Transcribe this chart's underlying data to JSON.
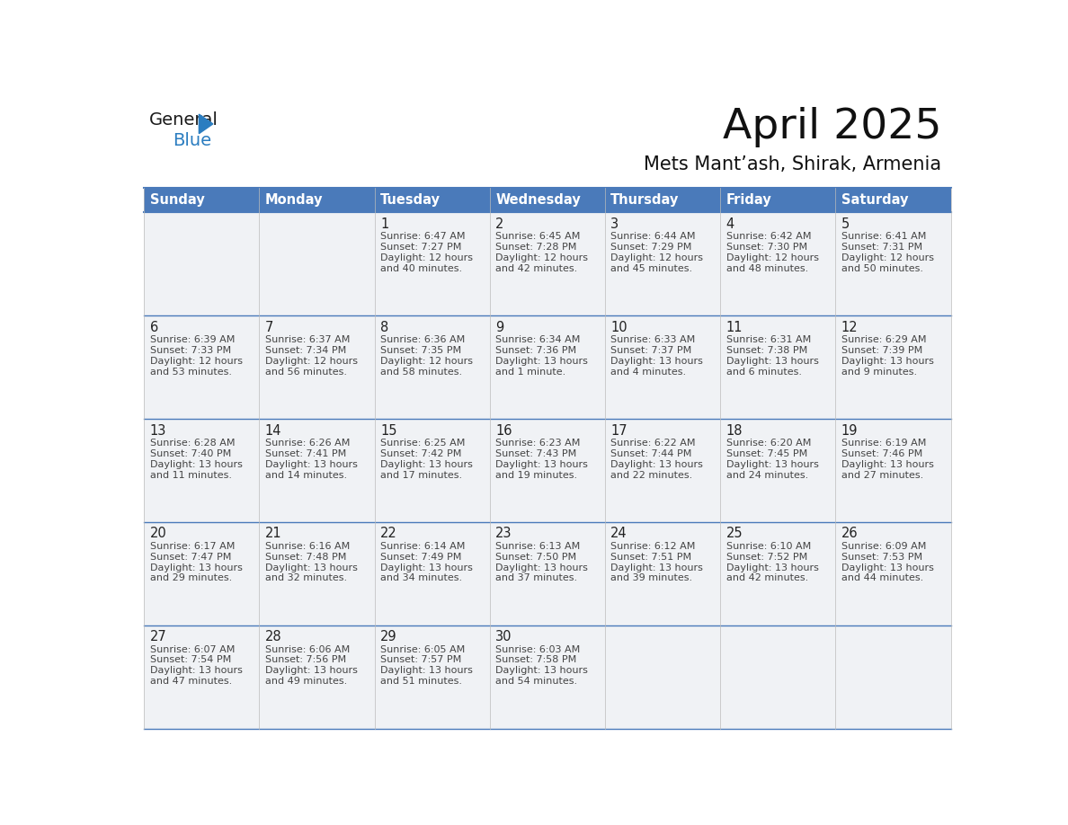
{
  "title": "April 2025",
  "subtitle": "Mets Mant’ash, Shirak, Armenia",
  "header_bg": "#4a7aba",
  "header_text": "#ffffff",
  "header_days": [
    "Sunday",
    "Monday",
    "Tuesday",
    "Wednesday",
    "Thursday",
    "Friday",
    "Saturday"
  ],
  "cell_bg": "#f0f2f5",
  "cell_border_color": "#4a7aba",
  "cell_border_thin": "#cccccc",
  "day_number_color": "#222222",
  "info_color": "#444444",
  "logo_text_color": "#1a1a1a",
  "logo_blue_color": "#2b7dc0",
  "weeks": [
    {
      "days": [
        {
          "date": "",
          "sunrise": "",
          "sunset": "",
          "daylight": ""
        },
        {
          "date": "",
          "sunrise": "",
          "sunset": "",
          "daylight": ""
        },
        {
          "date": "1",
          "sunrise": "6:47 AM",
          "sunset": "7:27 PM",
          "daylight": "12 hours and 40 minutes."
        },
        {
          "date": "2",
          "sunrise": "6:45 AM",
          "sunset": "7:28 PM",
          "daylight": "12 hours and 42 minutes."
        },
        {
          "date": "3",
          "sunrise": "6:44 AM",
          "sunset": "7:29 PM",
          "daylight": "12 hours and 45 minutes."
        },
        {
          "date": "4",
          "sunrise": "6:42 AM",
          "sunset": "7:30 PM",
          "daylight": "12 hours and 48 minutes."
        },
        {
          "date": "5",
          "sunrise": "6:41 AM",
          "sunset": "7:31 PM",
          "daylight": "12 hours and 50 minutes."
        }
      ]
    },
    {
      "days": [
        {
          "date": "6",
          "sunrise": "6:39 AM",
          "sunset": "7:33 PM",
          "daylight": "12 hours and 53 minutes."
        },
        {
          "date": "7",
          "sunrise": "6:37 AM",
          "sunset": "7:34 PM",
          "daylight": "12 hours and 56 minutes."
        },
        {
          "date": "8",
          "sunrise": "6:36 AM",
          "sunset": "7:35 PM",
          "daylight": "12 hours and 58 minutes."
        },
        {
          "date": "9",
          "sunrise": "6:34 AM",
          "sunset": "7:36 PM",
          "daylight": "13 hours and 1 minute."
        },
        {
          "date": "10",
          "sunrise": "6:33 AM",
          "sunset": "7:37 PM",
          "daylight": "13 hours and 4 minutes."
        },
        {
          "date": "11",
          "sunrise": "6:31 AM",
          "sunset": "7:38 PM",
          "daylight": "13 hours and 6 minutes."
        },
        {
          "date": "12",
          "sunrise": "6:29 AM",
          "sunset": "7:39 PM",
          "daylight": "13 hours and 9 minutes."
        }
      ]
    },
    {
      "days": [
        {
          "date": "13",
          "sunrise": "6:28 AM",
          "sunset": "7:40 PM",
          "daylight": "13 hours and 11 minutes."
        },
        {
          "date": "14",
          "sunrise": "6:26 AM",
          "sunset": "7:41 PM",
          "daylight": "13 hours and 14 minutes."
        },
        {
          "date": "15",
          "sunrise": "6:25 AM",
          "sunset": "7:42 PM",
          "daylight": "13 hours and 17 minutes."
        },
        {
          "date": "16",
          "sunrise": "6:23 AM",
          "sunset": "7:43 PM",
          "daylight": "13 hours and 19 minutes."
        },
        {
          "date": "17",
          "sunrise": "6:22 AM",
          "sunset": "7:44 PM",
          "daylight": "13 hours and 22 minutes."
        },
        {
          "date": "18",
          "sunrise": "6:20 AM",
          "sunset": "7:45 PM",
          "daylight": "13 hours and 24 minutes."
        },
        {
          "date": "19",
          "sunrise": "6:19 AM",
          "sunset": "7:46 PM",
          "daylight": "13 hours and 27 minutes."
        }
      ]
    },
    {
      "days": [
        {
          "date": "20",
          "sunrise": "6:17 AM",
          "sunset": "7:47 PM",
          "daylight": "13 hours and 29 minutes."
        },
        {
          "date": "21",
          "sunrise": "6:16 AM",
          "sunset": "7:48 PM",
          "daylight": "13 hours and 32 minutes."
        },
        {
          "date": "22",
          "sunrise": "6:14 AM",
          "sunset": "7:49 PM",
          "daylight": "13 hours and 34 minutes."
        },
        {
          "date": "23",
          "sunrise": "6:13 AM",
          "sunset": "7:50 PM",
          "daylight": "13 hours and 37 minutes."
        },
        {
          "date": "24",
          "sunrise": "6:12 AM",
          "sunset": "7:51 PM",
          "daylight": "13 hours and 39 minutes."
        },
        {
          "date": "25",
          "sunrise": "6:10 AM",
          "sunset": "7:52 PM",
          "daylight": "13 hours and 42 minutes."
        },
        {
          "date": "26",
          "sunrise": "6:09 AM",
          "sunset": "7:53 PM",
          "daylight": "13 hours and 44 minutes."
        }
      ]
    },
    {
      "days": [
        {
          "date": "27",
          "sunrise": "6:07 AM",
          "sunset": "7:54 PM",
          "daylight": "13 hours and 47 minutes."
        },
        {
          "date": "28",
          "sunrise": "6:06 AM",
          "sunset": "7:56 PM",
          "daylight": "13 hours and 49 minutes."
        },
        {
          "date": "29",
          "sunrise": "6:05 AM",
          "sunset": "7:57 PM",
          "daylight": "13 hours and 51 minutes."
        },
        {
          "date": "30",
          "sunrise": "6:03 AM",
          "sunset": "7:58 PM",
          "daylight": "13 hours and 54 minutes."
        },
        {
          "date": "",
          "sunrise": "",
          "sunset": "",
          "daylight": ""
        },
        {
          "date": "",
          "sunrise": "",
          "sunset": "",
          "daylight": ""
        },
        {
          "date": "",
          "sunrise": "",
          "sunset": "",
          "daylight": ""
        }
      ]
    }
  ]
}
